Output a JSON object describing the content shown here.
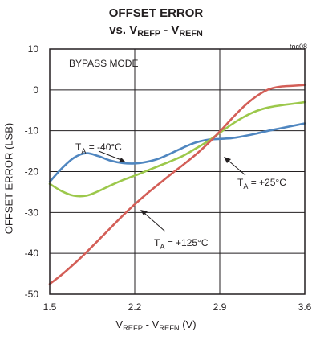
{
  "chart_data": {
    "type": "line",
    "title_line1": "OFFSET ERROR",
    "title_line2": {
      "vs": "vs. V",
      "sub1": "REFP",
      "mid": " - V",
      "sub2": "REFN"
    },
    "code": "toc08",
    "mode_label": "BYPASS MODE",
    "xlabel": {
      "v1": "V",
      "sub1": "REFP",
      "mid": " - V",
      "sub2": "REFN",
      "unit": " (V)"
    },
    "ylabel": "OFFSET ERROR (LSB)",
    "xlim": [
      1.5,
      3.6
    ],
    "ylim": [
      -50,
      10
    ],
    "xticks": [
      1.5,
      2.2,
      2.9,
      3.6
    ],
    "xtick_labels": [
      "1.5",
      "2.2",
      "2.9",
      "3.6"
    ],
    "yticks": [
      10,
      0,
      -10,
      -20,
      -30,
      -40,
      -50
    ],
    "ytick_labels": [
      "10",
      "0",
      "-10",
      "-20",
      "-30",
      "-40",
      "-50"
    ],
    "grid": true,
    "series": [
      {
        "label_main": "T",
        "label_sub": "A",
        "label_val": " = -40°C",
        "color": "#4f86c0",
        "x": [
          1.5,
          1.6,
          1.7,
          1.8,
          1.9,
          2.0,
          2.1,
          2.2,
          2.3,
          2.4,
          2.5,
          2.6,
          2.7,
          2.8,
          2.9,
          3.0,
          3.1,
          3.2,
          3.3,
          3.4,
          3.5,
          3.6
        ],
        "y": [
          -22.5,
          -19.2,
          -16.6,
          -15.5,
          -16.2,
          -17.3,
          -17.9,
          -18.0,
          -17.6,
          -16.8,
          -15.5,
          -14.1,
          -12.9,
          -12.2,
          -12.0,
          -11.8,
          -11.3,
          -10.7,
          -10.0,
          -9.4,
          -8.8,
          -8.2
        ]
      },
      {
        "label_main": "T",
        "label_sub": "A",
        "label_val": " = +25°C",
        "color": "#9cc84b",
        "x": [
          1.5,
          1.6,
          1.7,
          1.8,
          1.9,
          2.0,
          2.1,
          2.2,
          2.3,
          2.4,
          2.5,
          2.6,
          2.7,
          2.8,
          2.9,
          3.0,
          3.1,
          3.2,
          3.3,
          3.4,
          3.5,
          3.6
        ],
        "y": [
          -23.0,
          -24.8,
          -25.9,
          -25.9,
          -24.8,
          -23.4,
          -22.1,
          -21.0,
          -19.8,
          -18.6,
          -17.4,
          -16.1,
          -14.4,
          -12.6,
          -10.5,
          -8.4,
          -6.6,
          -5.2,
          -4.3,
          -3.8,
          -3.4,
          -3.0
        ]
      },
      {
        "label_main": "T",
        "label_sub": "A",
        "label_val": " = +125°C",
        "color": "#d35e57",
        "x": [
          1.5,
          1.6,
          1.7,
          1.8,
          1.9,
          2.0,
          2.1,
          2.2,
          2.3,
          2.4,
          2.5,
          2.6,
          2.7,
          2.8,
          2.9,
          3.0,
          3.1,
          3.2,
          3.3,
          3.4,
          3.5,
          3.6
        ],
        "y": [
          -47.5,
          -45.2,
          -42.6,
          -39.8,
          -36.8,
          -33.8,
          -30.8,
          -28.0,
          -25.4,
          -23.0,
          -20.6,
          -18.3,
          -15.9,
          -13.2,
          -10.2,
          -7.0,
          -4.0,
          -1.6,
          0.1,
          0.8,
          1.0,
          1.2
        ]
      }
    ]
  }
}
